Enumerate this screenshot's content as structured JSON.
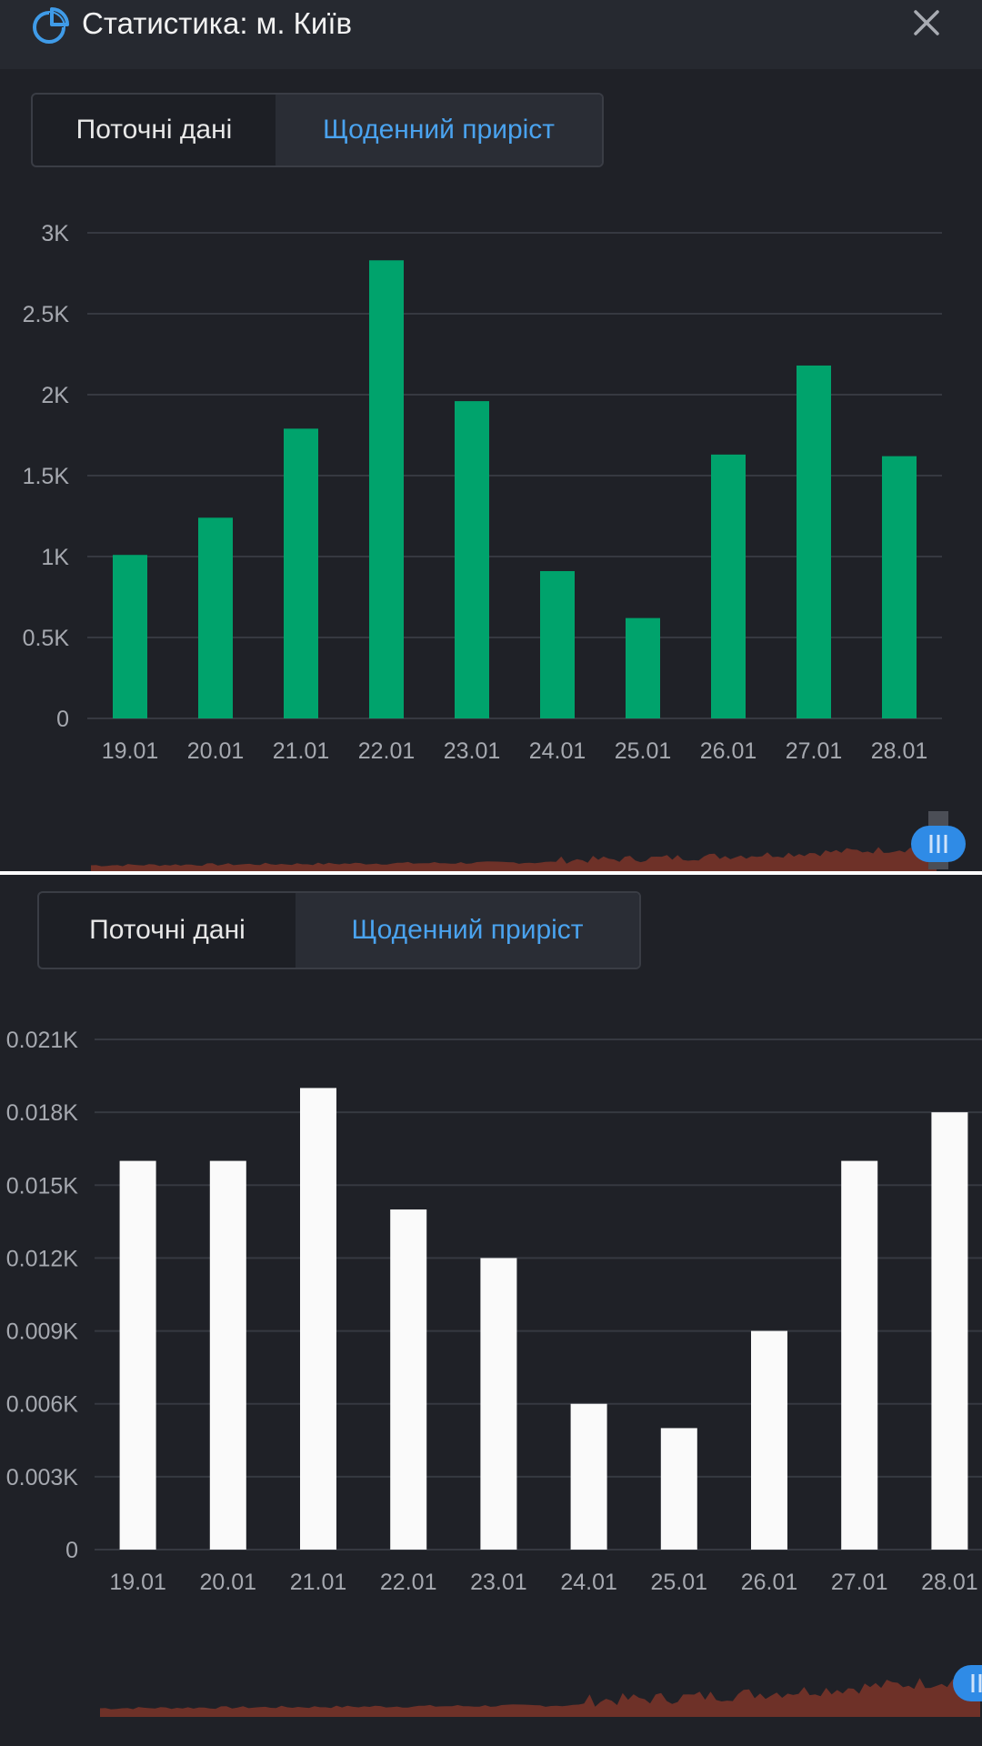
{
  "header": {
    "title": "Статистика: м. Київ",
    "icon": "pie-chart-icon",
    "close_icon": "close-icon"
  },
  "tabs": {
    "current_label": "Поточні дані",
    "daily_label": "Щоденний приріст",
    "active": "daily"
  },
  "colors": {
    "background": "#1f2127",
    "header_bg": "#262930",
    "bar_green": "#00a36c",
    "bar_white": "#fafafa",
    "accent_blue": "#4aa3ef",
    "minimap_fill": "#6e3128",
    "scroll_handle": "#2f8be6"
  },
  "chart_data": [
    {
      "type": "bar",
      "categories": [
        "19.01",
        "20.01",
        "21.01",
        "22.01",
        "23.01",
        "24.01",
        "25.01",
        "26.01",
        "27.01",
        "28.01"
      ],
      "values": [
        1010,
        1240,
        1790,
        2830,
        1960,
        910,
        620,
        1630,
        2180,
        1620
      ],
      "yticks": [
        "0",
        "0.5K",
        "1K",
        "1.5K",
        "2K",
        "2.5K",
        "3K"
      ],
      "ylim": [
        0,
        3000
      ],
      "grid": true,
      "color": "#00a36c"
    },
    {
      "type": "bar",
      "categories": [
        "19.01",
        "20.01",
        "21.01",
        "22.01",
        "23.01",
        "24.01",
        "25.01",
        "26.01",
        "27.01",
        "28.01"
      ],
      "values": [
        0.016,
        0.016,
        0.019,
        0.014,
        0.012,
        0.006,
        0.005,
        0.009,
        0.016,
        0.018
      ],
      "yticks": [
        "0",
        "0.003K",
        "0.006K",
        "0.009K",
        "0.012K",
        "0.015K",
        "0.018K",
        "0.021K"
      ],
      "ylim": [
        0,
        0.021
      ],
      "grid": true,
      "color": "#fafafa"
    }
  ]
}
